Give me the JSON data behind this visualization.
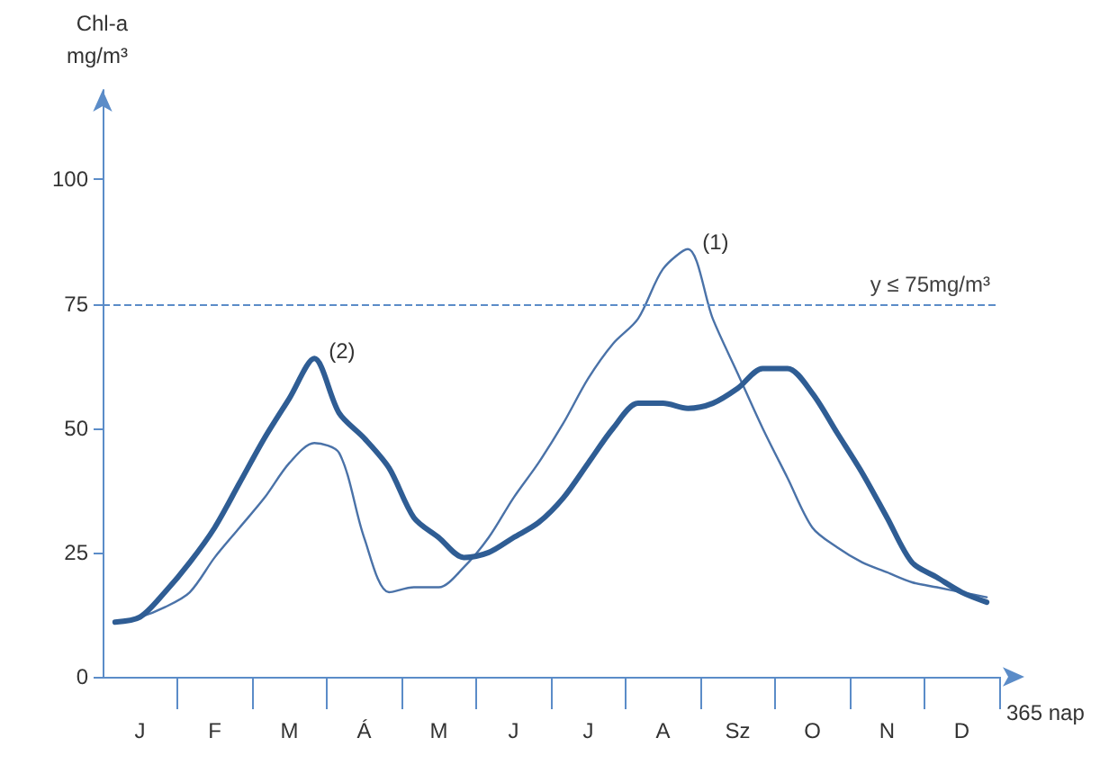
{
  "chart_data": {
    "type": "line",
    "ylabel": "Chl-a\nmg/m³",
    "xlabel": "365 nap",
    "categories": [
      null,
      "J",
      null,
      null,
      "F",
      null,
      null,
      "M",
      null,
      null,
      "Á",
      null,
      null,
      "M",
      null,
      null,
      "J",
      null,
      null,
      "J",
      null,
      null,
      "A",
      null,
      null,
      "Sz",
      null,
      null,
      "O",
      null,
      null,
      "N",
      null,
      null,
      "D",
      null
    ],
    "ylim": [
      0,
      118
    ],
    "yticks": [
      0,
      25,
      50,
      75,
      100
    ],
    "series": [
      {
        "color": "#4a72a8",
        "values": [
          11,
          12,
          14,
          17,
          24,
          30,
          36,
          43,
          47,
          45,
          28,
          17,
          18,
          18,
          22,
          28,
          36,
          43,
          51,
          60,
          67,
          72,
          82,
          86,
          72,
          61,
          50,
          40,
          30,
          26,
          23,
          21,
          19,
          18,
          17,
          16
        ]
      },
      {
        "color": "#2f5d94",
        "values": [
          11,
          12,
          17,
          23,
          30,
          39,
          48,
          56,
          64,
          53,
          48,
          42,
          32,
          28,
          24,
          25,
          28,
          31,
          36,
          43,
          50,
          55,
          55,
          54,
          55,
          58,
          62,
          62,
          57,
          49,
          41,
          32,
          23,
          20,
          17,
          15
        ]
      }
    ],
    "ref_lines": [
      {
        "axis": "y",
        "value": 75,
        "label": "y ≤ 75mg/m³",
        "line_style": "dashed",
        "color": "#5b8cc8"
      }
    ],
    "annotations": [
      "(1)",
      "(2)"
    ],
    "grid": false,
    "marker": "none",
    "line_style": "solid"
  }
}
